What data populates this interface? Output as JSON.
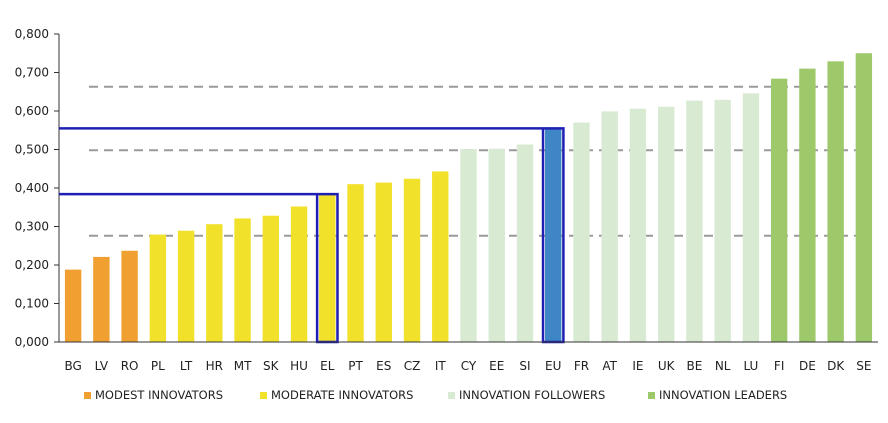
{
  "chart_data": {
    "type": "bar",
    "ylim": [
      0,
      0.8
    ],
    "yticks": [
      "0,000",
      "0,100",
      "0,200",
      "0,300",
      "0,400",
      "0,500",
      "0,600",
      "0,700",
      "0,800"
    ],
    "categories": [
      "BG",
      "LV",
      "RO",
      "PL",
      "LT",
      "HR",
      "MT",
      "SK",
      "HU",
      "EL",
      "PT",
      "ES",
      "CZ",
      "IT",
      "CY",
      "EE",
      "SI",
      "EU",
      "FR",
      "AT",
      "IE",
      "UK",
      "BE",
      "NL",
      "LU",
      "FI",
      "DE",
      "DK",
      "SE"
    ],
    "values": [
      0.188,
      0.221,
      0.237,
      0.279,
      0.289,
      0.306,
      0.321,
      0.328,
      0.352,
      0.384,
      0.41,
      0.414,
      0.424,
      0.443,
      0.501,
      0.502,
      0.513,
      0.555,
      0.57,
      0.599,
      0.606,
      0.611,
      0.627,
      0.629,
      0.646,
      0.684,
      0.71,
      0.729,
      0.75
    ],
    "groups": [
      "modest",
      "modest",
      "modest",
      "moderate",
      "moderate",
      "moderate",
      "moderate",
      "moderate",
      "moderate",
      "moderate",
      "moderate",
      "moderate",
      "moderate",
      "moderate",
      "follower",
      "follower",
      "follower",
      "eu",
      "follower",
      "follower",
      "follower",
      "follower",
      "follower",
      "follower",
      "follower",
      "leader",
      "leader",
      "leader",
      "leader"
    ],
    "thresholds": [
      0.276,
      0.498,
      0.663
    ],
    "highlighted": [
      {
        "category": "EL",
        "value": 0.384
      },
      {
        "category": "EU",
        "value": 0.555
      }
    ],
    "legend": [
      {
        "key": "modest",
        "label": "MODEST INNOVATORS"
      },
      {
        "key": "moderate",
        "label": "MODERATE INNOVATORS"
      },
      {
        "key": "follower",
        "label": "INNOVATION FOLLOWERS"
      },
      {
        "key": "leader",
        "label": "INNOVATION LEADERS"
      }
    ],
    "colors": {
      "modest": "#f0a030",
      "moderate": "#f2e12a",
      "follower": "#d8ead2",
      "leader": "#9dc96b",
      "eu": "#3f86c6",
      "highlight": "#1f1fb4",
      "threshold": "#9a9a9a",
      "axis": "#333333"
    },
    "title": "",
    "xlabel": "",
    "ylabel": "",
    "grid": false,
    "legend_position": "bottom"
  }
}
